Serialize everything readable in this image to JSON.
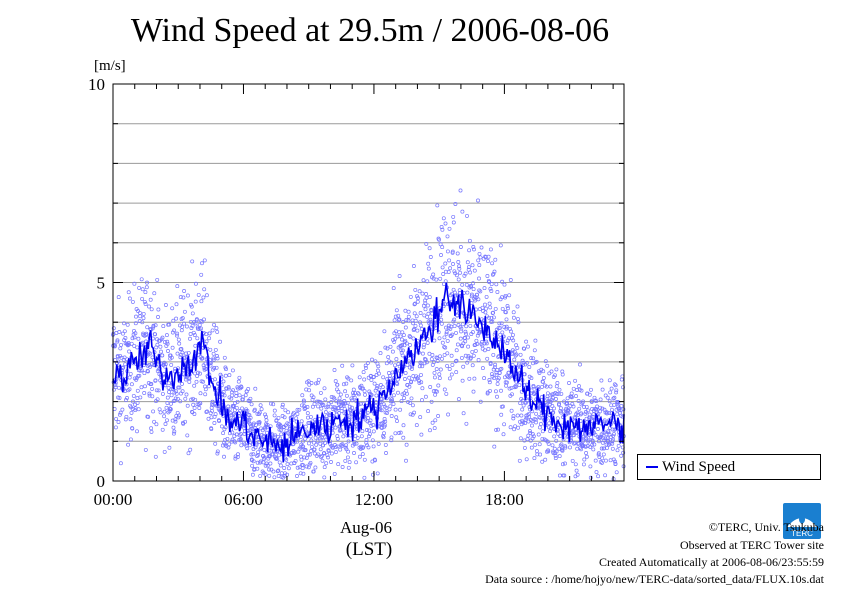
{
  "chart_data": {
    "type": "scatter",
    "title": "Wind Speed at 29.5m / 2006-08-06",
    "ylabel": "[m/s]",
    "xlabel": "Aug-06",
    "xlabel2": "(LST)",
    "x_unit": "hours",
    "xlim": [
      0,
      23.5
    ],
    "ylim": [
      0,
      10
    ],
    "x_ticks": [
      {
        "value": 0,
        "label": "00:00"
      },
      {
        "value": 6,
        "label": "06:00"
      },
      {
        "value": 12,
        "label": "12:00"
      },
      {
        "value": 18,
        "label": "18:00"
      }
    ],
    "y_ticks": [
      {
        "value": 0,
        "label": "0"
      },
      {
        "value": 5,
        "label": "5"
      },
      {
        "value": 10,
        "label": "10"
      }
    ],
    "grid": true,
    "legend_position": "bottom-right-outside",
    "series": [
      {
        "name": "Wind Speed",
        "color": "#0000ee",
        "points_color": "#7777ff",
        "x": [
          0,
          0.5,
          1,
          1.5,
          1.75,
          2,
          2.5,
          3,
          3.5,
          4,
          4.25,
          4.5,
          5,
          5.5,
          6,
          6.5,
          7,
          7.5,
          8,
          8.5,
          9,
          9.5,
          10,
          10.5,
          11,
          11.5,
          12,
          12.5,
          13,
          13.5,
          14,
          14.5,
          15,
          15.3,
          15.5,
          16,
          16.5,
          17,
          17.5,
          18,
          18.5,
          19,
          19.5,
          20,
          20.5,
          21,
          21.5,
          22,
          22.5,
          23,
          23.5
        ],
        "values": [
          2.8,
          2.6,
          3.0,
          3.2,
          3.5,
          2.9,
          2.6,
          2.8,
          3.0,
          3.4,
          3.3,
          2.6,
          1.9,
          1.4,
          1.5,
          1.1,
          1.0,
          0.9,
          0.9,
          1.2,
          1.3,
          1.4,
          1.4,
          1.6,
          1.5,
          1.7,
          1.8,
          2.2,
          2.7,
          3.1,
          3.3,
          3.8,
          4.2,
          4.9,
          4.6,
          4.4,
          4.1,
          3.9,
          3.6,
          3.3,
          2.7,
          2.2,
          1.9,
          1.7,
          1.5,
          1.4,
          1.4,
          1.3,
          1.4,
          1.5,
          1.3
        ]
      }
    ],
    "legend_label": "Wind Speed"
  },
  "footer": {
    "credit": "©TERC, Univ. Tsukuba",
    "observed": "Observed at TERC Tower site",
    "created": "Created Automatically at 2006-08-06/23:55:59",
    "source": "Data source : /home/hojyo/new/TERC-data/sorted_data/FLUX.10s.dat"
  },
  "logo": {
    "text": "TERC",
    "color": "#1a7fd0"
  }
}
